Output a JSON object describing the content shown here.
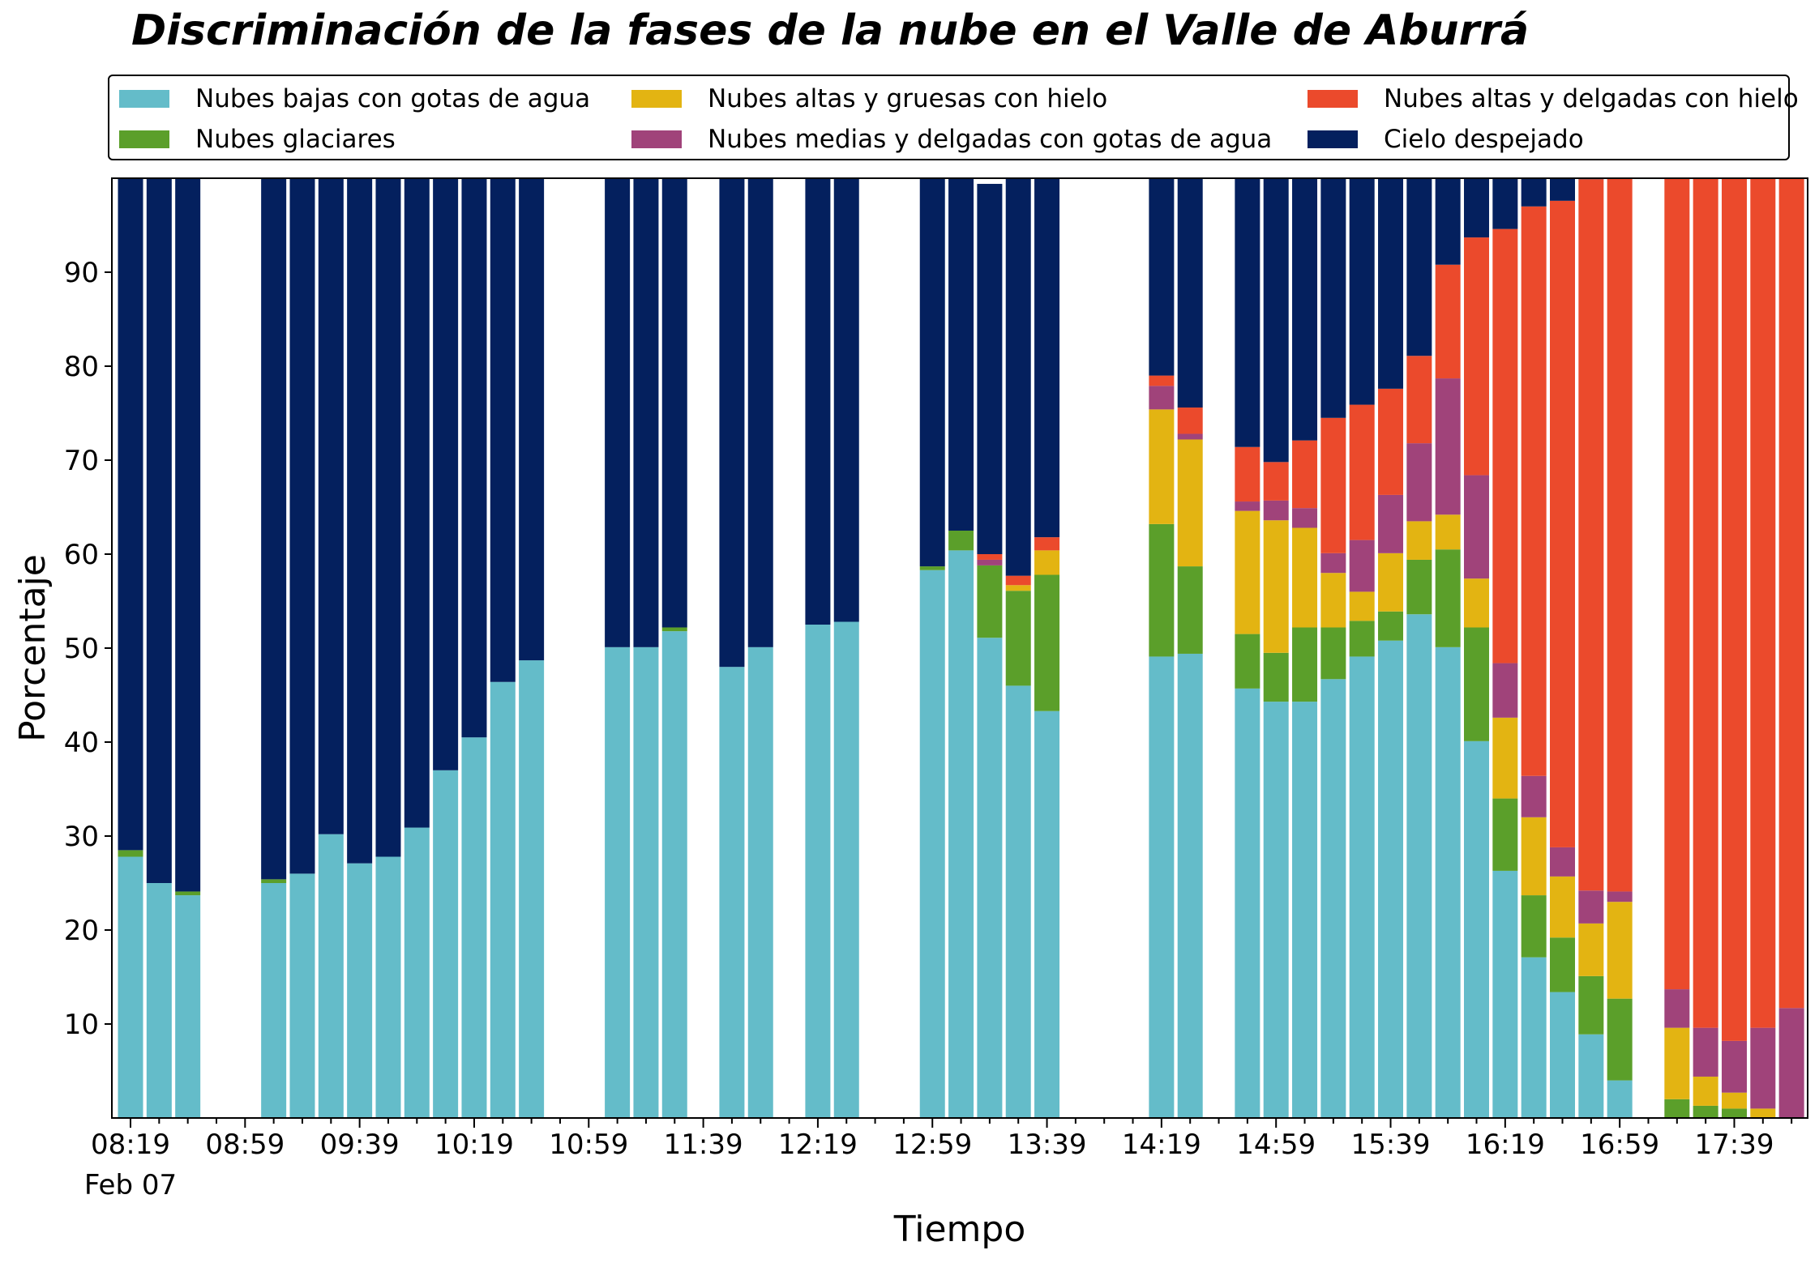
{
  "chart_data": {
    "type": "bar",
    "stacked": true,
    "title": "Discriminación de la fases de la nube en el Valle de Aburrá",
    "xlabel": "Tiempo",
    "ylabel": "Porcentaje",
    "ylim": [
      0,
      100
    ],
    "y_ticks": [
      10,
      20,
      30,
      40,
      50,
      60,
      70,
      80,
      90
    ],
    "x_tick_labels": [
      "08:19",
      "08:59",
      "09:39",
      "10:19",
      "10:59",
      "11:39",
      "12:19",
      "12:59",
      "13:39",
      "14:19",
      "14:59",
      "15:39",
      "16:19",
      "16:59",
      "17:39"
    ],
    "x_date_label": "Feb 07",
    "grid": false,
    "legend_position": "top",
    "interval_minutes": 10,
    "x": [
      "08:19",
      "08:29",
      "08:39",
      "08:49",
      "08:59",
      "09:09",
      "09:19",
      "09:29",
      "09:39",
      "09:49",
      "09:59",
      "10:09",
      "10:19",
      "10:29",
      "10:39",
      "10:49",
      "10:59",
      "11:09",
      "11:19",
      "11:29",
      "11:39",
      "11:49",
      "11:59",
      "12:09",
      "12:19",
      "12:29",
      "12:39",
      "12:49",
      "12:59",
      "13:09",
      "13:19",
      "13:29",
      "13:39",
      "13:49",
      "13:59",
      "14:09",
      "14:19",
      "14:29",
      "14:39",
      "14:49",
      "14:59",
      "15:09",
      "15:19",
      "15:29",
      "15:39",
      "15:49",
      "15:59",
      "16:09",
      "16:19",
      "16:29",
      "16:39",
      "16:49",
      "16:59",
      "17:09",
      "17:19",
      "17:29",
      "17:39",
      "17:49",
      "17:59"
    ],
    "series": [
      {
        "name": "Nubes bajas con gotas de agua",
        "color": "#64bcc9",
        "values": [
          27.8,
          25.0,
          23.7,
          0,
          0,
          25.0,
          26.0,
          30.2,
          27.1,
          27.8,
          30.9,
          37.0,
          40.5,
          46.4,
          48.7,
          0,
          0,
          50.1,
          50.1,
          51.8,
          0,
          48.0,
          50.1,
          0,
          52.5,
          52.8,
          0,
          0,
          58.3,
          60.4,
          51.1,
          46.0,
          43.3,
          0,
          0,
          0,
          49.1,
          49.4,
          0,
          45.7,
          44.3,
          44.3,
          46.7,
          49.1,
          50.8,
          53.6,
          50.1,
          40.1,
          26.3,
          17.1,
          13.4,
          8.9,
          4.0,
          0,
          0,
          0,
          0,
          0,
          0
        ]
      },
      {
        "name": "Nubes glaciares",
        "color": "#5b9f2a",
        "values": [
          0.7,
          0,
          0.4,
          0,
          0,
          0.4,
          0,
          0,
          0,
          0,
          0,
          0,
          0,
          0,
          0,
          0,
          0,
          0,
          0,
          0.4,
          0,
          0,
          0,
          0,
          0,
          0,
          0,
          0,
          0.4,
          2.1,
          7.7,
          10.1,
          14.5,
          0,
          0,
          0,
          14.1,
          9.3,
          0,
          5.8,
          5.2,
          7.9,
          5.5,
          3.8,
          3.1,
          5.8,
          10.4,
          12.1,
          7.7,
          6.6,
          5.8,
          6.2,
          8.7,
          0,
          2.0,
          1.3,
          1.0,
          0,
          0
        ]
      },
      {
        "name": "Nubes altas y gruesas con hielo",
        "color": "#e3b412",
        "values": [
          0,
          0,
          0,
          0,
          0,
          0,
          0,
          0,
          0,
          0,
          0,
          0,
          0,
          0,
          0,
          0,
          0,
          0,
          0,
          0,
          0,
          0,
          0,
          0,
          0,
          0,
          0,
          0,
          0,
          0,
          0,
          0.6,
          2.6,
          0,
          0,
          0,
          12.2,
          13.5,
          0,
          13.1,
          14.1,
          10.6,
          5.8,
          3.1,
          6.2,
          4.1,
          3.7,
          5.2,
          8.6,
          8.3,
          6.5,
          5.6,
          10.3,
          0,
          7.6,
          3.1,
          1.7,
          1.0,
          0
        ]
      },
      {
        "name": "Nubes medias y delgadas con gotas de agua",
        "color": "#a0437a",
        "values": [
          0,
          0,
          0,
          0,
          0,
          0,
          0,
          0,
          0,
          0,
          0,
          0,
          0,
          0,
          0,
          0,
          0,
          0,
          0,
          0,
          0,
          0,
          0,
          0,
          0,
          0,
          0,
          0,
          0,
          0,
          0.6,
          0,
          0,
          0,
          0,
          0,
          2.5,
          0.6,
          0,
          1.0,
          2.1,
          2.1,
          2.1,
          5.5,
          6.2,
          8.3,
          14.5,
          11.0,
          5.8,
          4.4,
          3.1,
          3.5,
          1.1,
          0,
          4.1,
          5.2,
          5.5,
          8.6,
          11.7
        ]
      },
      {
        "name": "Nubes altas y delgadas con hielo",
        "color": "#eb4a2c",
        "values": [
          0,
          0,
          0,
          0,
          0,
          0,
          0,
          0,
          0,
          0,
          0,
          0,
          0,
          0,
          0,
          0,
          0,
          0,
          0,
          0,
          0,
          0,
          0,
          0,
          0,
          0,
          0,
          0,
          0,
          0,
          0.6,
          1.0,
          1.4,
          0,
          0,
          0,
          1.1,
          2.8,
          0,
          5.8,
          4.1,
          7.2,
          14.4,
          14.4,
          11.3,
          9.3,
          12.1,
          25.3,
          46.2,
          60.6,
          68.8,
          75.7,
          75.9,
          0,
          86.3,
          90.4,
          91.8,
          90.4,
          88.3
        ]
      },
      {
        "name": "Cielo despejado",
        "color": "#04205e",
        "values": [
          71.5,
          75.0,
          75.9,
          0,
          0,
          74.6,
          74.0,
          69.8,
          72.9,
          72.2,
          69.1,
          63.0,
          59.5,
          53.6,
          51.3,
          0,
          0,
          49.9,
          49.9,
          47.8,
          0,
          52.0,
          49.9,
          0,
          47.5,
          47.2,
          0,
          0,
          41.3,
          37.5,
          39.4,
          42.3,
          38.2,
          0,
          0,
          0,
          21.0,
          24.4,
          0,
          28.6,
          30.2,
          27.9,
          25.5,
          24.1,
          22.4,
          18.9,
          9.2,
          6.3,
          5.4,
          3.0,
          2.4,
          0.1,
          0,
          0,
          0,
          0,
          0,
          0,
          0
        ]
      }
    ]
  }
}
